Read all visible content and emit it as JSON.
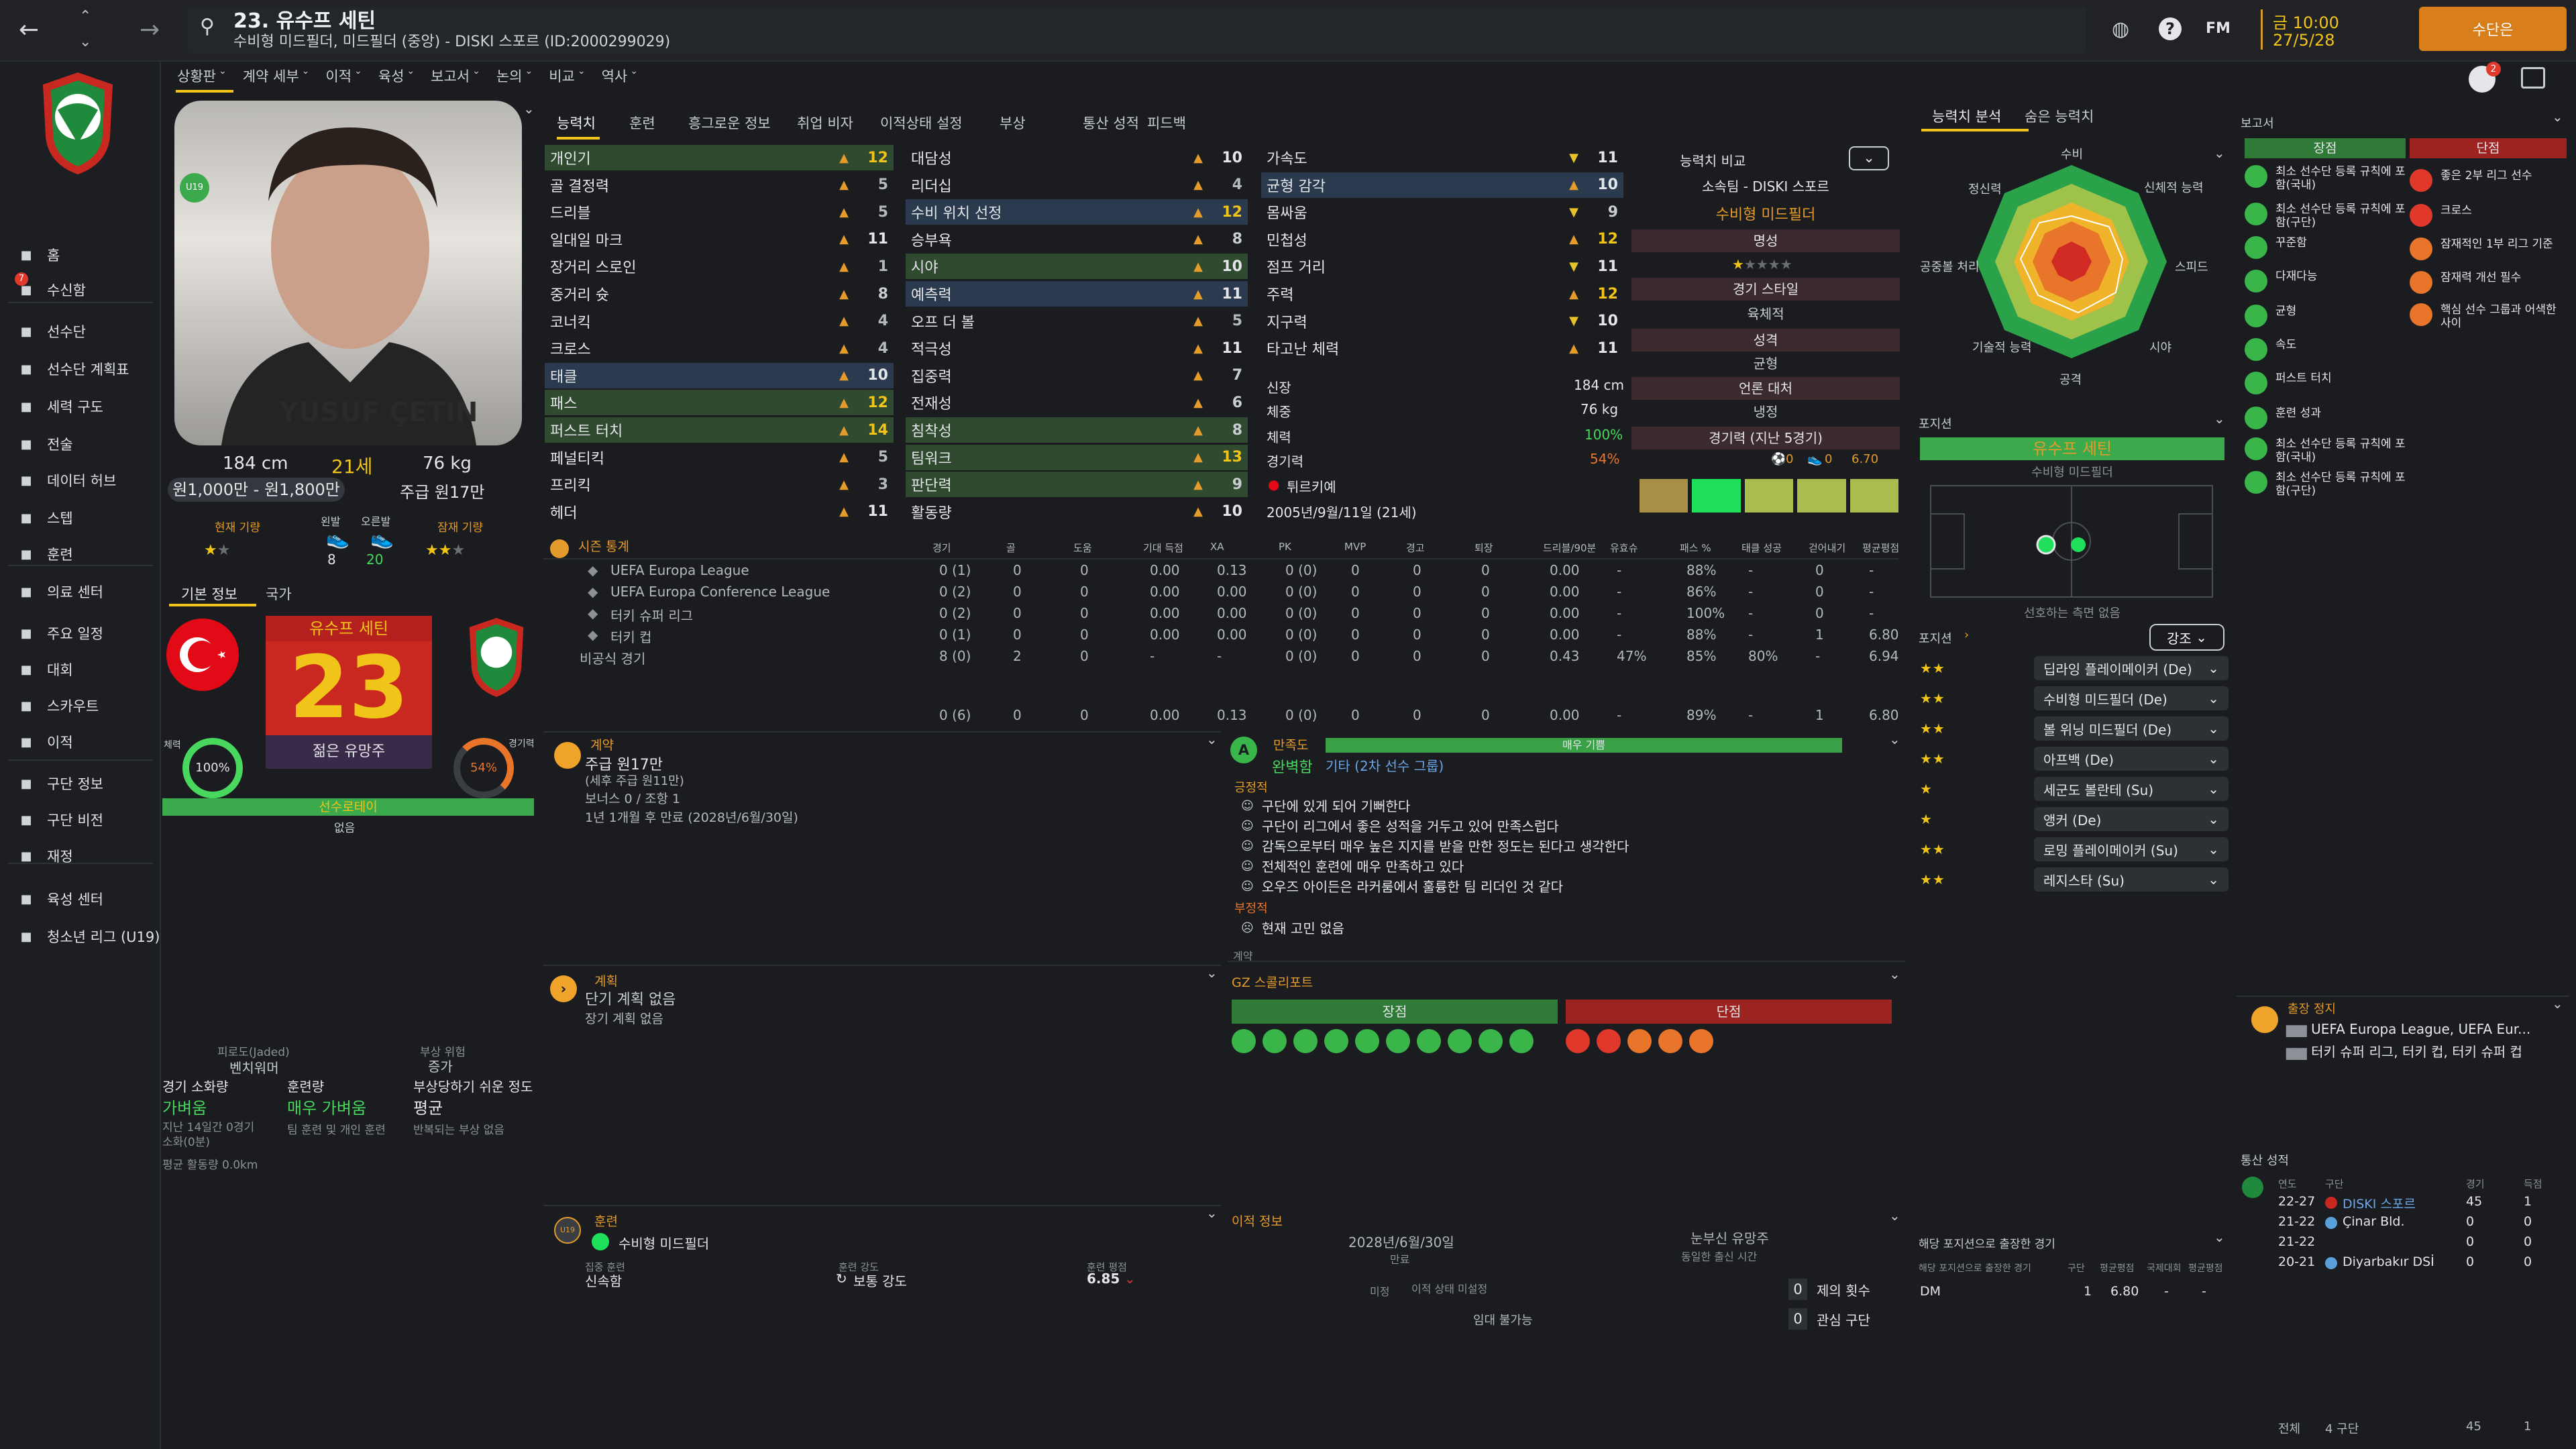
{
  "window": {
    "title": "23. 유수프 세틴",
    "subtitle": "수비형 미드필더, 미드필더 (중앙) - DISKI 스포르 (ID:2000299029)",
    "date": "금 10:00",
    "date2": "27/5/28",
    "continue_label": "수단은",
    "fm_label": "FM",
    "notif_count": "2"
  },
  "sidebar": {
    "items": [
      {
        "label": "홈",
        "icon": "home-icon"
      },
      {
        "label": "수신함",
        "icon": "inbox-icon",
        "badge": "7"
      },
      {
        "label": "선수단",
        "icon": "squad-icon"
      },
      {
        "label": "선수단 계획표",
        "icon": "plan-icon"
      },
      {
        "label": "세력 구도",
        "icon": "dynamics-icon"
      },
      {
        "label": "전술",
        "icon": "tactics-icon"
      },
      {
        "label": "데이터 허브",
        "icon": "data-icon"
      },
      {
        "label": "스텝",
        "icon": "staff-icon"
      },
      {
        "label": "훈련",
        "icon": "training-icon"
      },
      {
        "label": "의료 센터",
        "icon": "medical-icon"
      },
      {
        "label": "주요 일정",
        "icon": "calendar-icon"
      },
      {
        "label": "대회",
        "icon": "trophy-icon"
      },
      {
        "label": "스카우트",
        "icon": "scout-icon"
      },
      {
        "label": "이적",
        "icon": "transfer-icon"
      },
      {
        "label": "구단 정보",
        "icon": "club-icon"
      },
      {
        "label": "구단 비전",
        "icon": "vision-icon"
      },
      {
        "label": "재정",
        "icon": "finance-icon"
      },
      {
        "label": "육성 센터",
        "icon": "development-icon"
      },
      {
        "label": "청소년 리그 (U19)",
        "icon": "youth-icon"
      }
    ]
  },
  "subnav": [
    "상황판",
    "계약 세부",
    "이적",
    "육성",
    "보고서",
    "논의",
    "비교",
    "역사"
  ],
  "profile": {
    "height": "184 cm",
    "age": "21세",
    "weight": "76 kg",
    "value": "원1,000만 - 원1,800만",
    "wage": "주급 원17만",
    "current_ability": "현재 기량",
    "left_foot": "왼발",
    "right_foot": "오른발",
    "potential": "잠재 기량",
    "left_foot_val": "8",
    "right_foot_val": "20",
    "u19": "U19",
    "shirt_name": "YUSUF ÇETIN",
    "shirt_number": "23",
    "name_badge": "유수프 세틴",
    "tab_basic": "기본 정보",
    "tab_nation": "국가",
    "fitness": "100%",
    "fitness_label": "체력",
    "match_sharp": "54%",
    "match_sharp_label": "경기력",
    "personality": "젊은 유망주",
    "rotation": "선수로테이",
    "rotation_sub": "없음",
    "fatigue_label": "피로도(Jaded)",
    "fatigue_val": "벤치워머",
    "injury_label": "부상 위험",
    "injury_val": "증가",
    "exp_label": "경기 소화량",
    "exp_val": "가벼움",
    "train_label": "훈련량",
    "train_val": "매우 가벼움",
    "inj_prone_label": "부상당하기 쉬운 정도",
    "inj_prone_val": "평균",
    "exp_sub": "지난 14일간 0경기 소화(0분)",
    "train_sub": "팀 훈련 및 개인 훈련",
    "inj_sub": "반복되는 부상 없음",
    "distance": "평균 활동량 0.0km"
  },
  "tabs": [
    "능력치",
    "훈련",
    "흥그로운 정보",
    "취업 비자",
    "이적상태 설정",
    "부상",
    "통산 성적",
    "피드백"
  ],
  "attributes": {
    "col1": [
      [
        "개인기",
        "12"
      ],
      [
        "골 결정력",
        "5"
      ],
      [
        "드리블",
        "5"
      ],
      [
        "일대일 마크",
        "11"
      ],
      [
        "장거리 스로인",
        "1"
      ],
      [
        "중거리 슛",
        "8"
      ],
      [
        "코너킥",
        "4"
      ],
      [
        "크로스",
        "4"
      ],
      [
        "태클",
        "10"
      ],
      [
        "패스",
        "12"
      ],
      [
        "퍼스트 터치",
        "14"
      ],
      [
        "페널티킥",
        "5"
      ],
      [
        "프리킥",
        "3"
      ],
      [
        "헤더",
        "11"
      ]
    ],
    "col2": [
      [
        "대담성",
        "10"
      ],
      [
        "리더십",
        "4"
      ],
      [
        "수비 위치 선정",
        "12"
      ],
      [
        "승부욕",
        "8"
      ],
      [
        "시야",
        "10"
      ],
      [
        "예측력",
        "11"
      ],
      [
        "오프 더 볼",
        "5"
      ],
      [
        "적극성",
        "11"
      ],
      [
        "집중력",
        "7"
      ],
      [
        "전재성",
        "6"
      ],
      [
        "침착성",
        "8"
      ],
      [
        "팀워크",
        "13"
      ],
      [
        "판단력",
        "9"
      ],
      [
        "활동량",
        "10"
      ]
    ],
    "col3": [
      [
        "가속도",
        "11"
      ],
      [
        "균형 감각",
        "10"
      ],
      [
        "몸싸움",
        "9"
      ],
      [
        "민첩성",
        "12"
      ],
      [
        "점프 거리",
        "11"
      ],
      [
        "주력",
        "12"
      ],
      [
        "지구력",
        "10"
      ],
      [
        "타고난 체력",
        "11"
      ]
    ]
  },
  "attr_compare": "능력치 비교",
  "club_info": {
    "club": "소속팀 - DISKI 스포르",
    "position": "수비형 미드필더",
    "fame": "명성",
    "play_style": "경기 스타일",
    "play_style_val": "육체적",
    "personality": "성격",
    "personality_val": "균형",
    "media": "언론 대처",
    "media_val": "냉정",
    "form": "경기력 (지난 5경기)",
    "goals": "0",
    "assists": "0",
    "rating": "6.70"
  },
  "physical": {
    "height_label": "신장",
    "height": "184 cm",
    "weight_label": "체중",
    "weight": "76 kg",
    "fitness_label": "체력",
    "fitness": "100%",
    "sharp_label": "경기력",
    "sharp": "54%",
    "nation": "튀르키예",
    "dob": "2005년/9월/11일 (21세)"
  },
  "season": {
    "title": "시즌 통계",
    "headers": [
      "경기",
      "골",
      "도움",
      "기대 득점",
      "XA",
      "PK",
      "MVP",
      "경고",
      "퇴장",
      "드리블/90분",
      "유효슈",
      "패스 %",
      "태클 성공",
      "걷어내기",
      "평균평점"
    ],
    "rows": [
      {
        "comp": "UEFA Europa League",
        "vals": [
          "0 (1)",
          "0",
          "0",
          "0.00",
          "0.13",
          "0 (0)",
          "0",
          "0",
          "0",
          "0.00",
          "-",
          "88%",
          "-",
          "0",
          "-"
        ]
      },
      {
        "comp": "UEFA Europa Conference League",
        "vals": [
          "0 (2)",
          "0",
          "0",
          "0.00",
          "0.00",
          "0 (0)",
          "0",
          "0",
          "0",
          "0.00",
          "-",
          "86%",
          "-",
          "0",
          "-"
        ]
      },
      {
        "comp": "터키 슈퍼 리그",
        "vals": [
          "0 (2)",
          "0",
          "0",
          "0.00",
          "0.00",
          "0 (0)",
          "0",
          "0",
          "0",
          "0.00",
          "-",
          "100%",
          "-",
          "0",
          "-"
        ]
      },
      {
        "comp": "터키 컵",
        "vals": [
          "0 (1)",
          "0",
          "0",
          "0.00",
          "0.00",
          "0 (0)",
          "0",
          "0",
          "0",
          "0.00",
          "-",
          "88%",
          "-",
          "1",
          "6.80"
        ]
      },
      {
        "comp": "비공식 경기",
        "vals": [
          "8 (0)",
          "2",
          "0",
          "-",
          "-",
          "0 (0)",
          "0",
          "0",
          "0",
          "0.43",
          "47%",
          "85%",
          "80%",
          "-",
          "6.94"
        ]
      }
    ],
    "total": [
      "0 (6)",
      "0",
      "0",
      "0.00",
      "0.13",
      "0 (0)",
      "0",
      "0",
      "0",
      "0.00",
      "-",
      "89%",
      "-",
      "1",
      "6.80"
    ]
  },
  "contract": {
    "title": "계약",
    "wage": "주급 원17만",
    "wage_sub": "(세후 주급 원11만)",
    "bonus": "보너스 0 / 조항 1",
    "expiry": "1년 1개월 후 만료 (2028년/6월/30일)"
  },
  "plan": {
    "title": "계획",
    "short": "단기 계획 없음",
    "long": "장기 계획 없음"
  },
  "happiness": {
    "title": "만족도",
    "bar": "매우 기쁨",
    "status": "완벽함",
    "role": "기타 (2차 선수 그룹)",
    "positive": "긍정적",
    "items": [
      "구단에 있게 되어 기뻐한다",
      "구단이 리그에서 좋은 성적을 거두고 있어 만족스럽다",
      "감독으로부터 매우 높은 지지를 받을 만한 정도는 된다고 생각한다",
      "전체적인 훈련에 매우 만족하고 있다",
      "오우즈 아이든은 라커룸에서 훌륭한 팀 리더인 것 같다"
    ],
    "negative": "부정적",
    "neg_items": [
      "현재 고민 없음"
    ],
    "cut": "계약"
  },
  "gz": {
    "title": "GZ 스콜리포트",
    "strengths": "장점",
    "weaknesses": "단점"
  },
  "training": {
    "title": "훈련",
    "role": "수비형 미드필더",
    "focus_label": "집중 훈련",
    "focus": "신속함",
    "intensity_label": "훈련 강도",
    "intensity": "보통 강도",
    "rating_label": "훈련 평점",
    "rating": "6.85"
  },
  "transfer": {
    "title": "이적 정보",
    "date": "2028년/6월/30일",
    "date_sub": "만료",
    "status": "미정",
    "status_sub": "이적 상태 미설정",
    "loan": "임대 불가능",
    "prospect": "눈부신 유망주",
    "prospect_sub": "동일한 출신 시간",
    "offers": "0",
    "offers_label": "제의 횟수",
    "interest": "0",
    "interest_label": "관심 구단"
  },
  "analysis": {
    "tab1": "능력치 분석",
    "tab2": "숨은 능력치",
    "axes": [
      "수비",
      "신체적 능력",
      "스피드",
      "시야",
      "공격",
      "기술적 능력",
      "공중볼 처리",
      "정신력"
    ]
  },
  "position": {
    "title": "포지션",
    "name": "유수프 세틴",
    "role": "수비형 미드필더",
    "note": "선호하는 측면 없음"
  },
  "positions2": {
    "title": "포지션",
    "button": "강조",
    "roles": [
      {
        "stars": "★★",
        "role": "딥라잉 플레이메이커 (De)"
      },
      {
        "stars": "★★",
        "role": "수비형 미드필더 (De)"
      },
      {
        "stars": "★★",
        "role": "볼 위닝 미드필더 (De)"
      },
      {
        "stars": "★★",
        "role": "아프백 (De)"
      },
      {
        "stars": "★",
        "role": "세군도 볼란테 (Su)"
      },
      {
        "stars": "★",
        "role": "앵커 (De)"
      },
      {
        "stars": "★★",
        "role": "로밍 플레이메이커 (Su)"
      },
      {
        "stars": "★★",
        "role": "레지스타 (Su)"
      }
    ]
  },
  "pos_exp": {
    "title": "해당 포지션으로 출장한 경기",
    "headers": [
      "해당 포지션으로 출장한 경기",
      "구단",
      "평균평점",
      "국제대회",
      "평균평점"
    ],
    "row": [
      "DM",
      "1",
      "6.80",
      "-",
      "-"
    ]
  },
  "report": {
    "title": "보고서",
    "strengths_label": "장점",
    "weaknesses_label": "단점",
    "strengths": [
      "최소 선수단 등록 규칙에 포함(국내)",
      "최소 선수단 등록 규칙에 포함(구단)",
      "꾸준함",
      "다재다능",
      "균형",
      "속도",
      "퍼스트 터치",
      "훈련 성과",
      "최소 선수단 등록 규칙에 포함(국내)",
      "최소 선수단 등록 규칙에 포함(구단)"
    ],
    "weaknesses": [
      "좋은 2부 리그 선수",
      "크로스",
      "잠재적인 1부 리그 기준",
      "잠재력 개선 필수",
      "핵심 선수 그룹과 어색한 사이"
    ]
  },
  "suspension": {
    "title": "출장 정지",
    "line1": "UEFA Europa League, UEFA Eur...",
    "line2": "터키 슈퍼 리그, 터키 컵, 터키 슈퍼 컵"
  },
  "history": {
    "title": "통산 성적",
    "headers": [
      "연도",
      "구단",
      "경기",
      "득점"
    ],
    "rows": [
      [
        "22-27",
        "DISKI 스포르",
        "45",
        "1"
      ],
      [
        "21-22",
        "Çinar Bld.",
        "0",
        "0"
      ],
      [
        "21-22",
        "",
        "0",
        "0"
      ],
      [
        "20-21",
        "Diyarbakır DSİ",
        "0",
        "0"
      ]
    ],
    "total_label": "전체",
    "total_clubs": "4 구단",
    "total_apps": "45",
    "total_goals": "1"
  },
  "colors": {
    "accent": "#f0c419",
    "bg": "#1a1c20",
    "green": "#39b54a",
    "red": "#e0392b"
  }
}
